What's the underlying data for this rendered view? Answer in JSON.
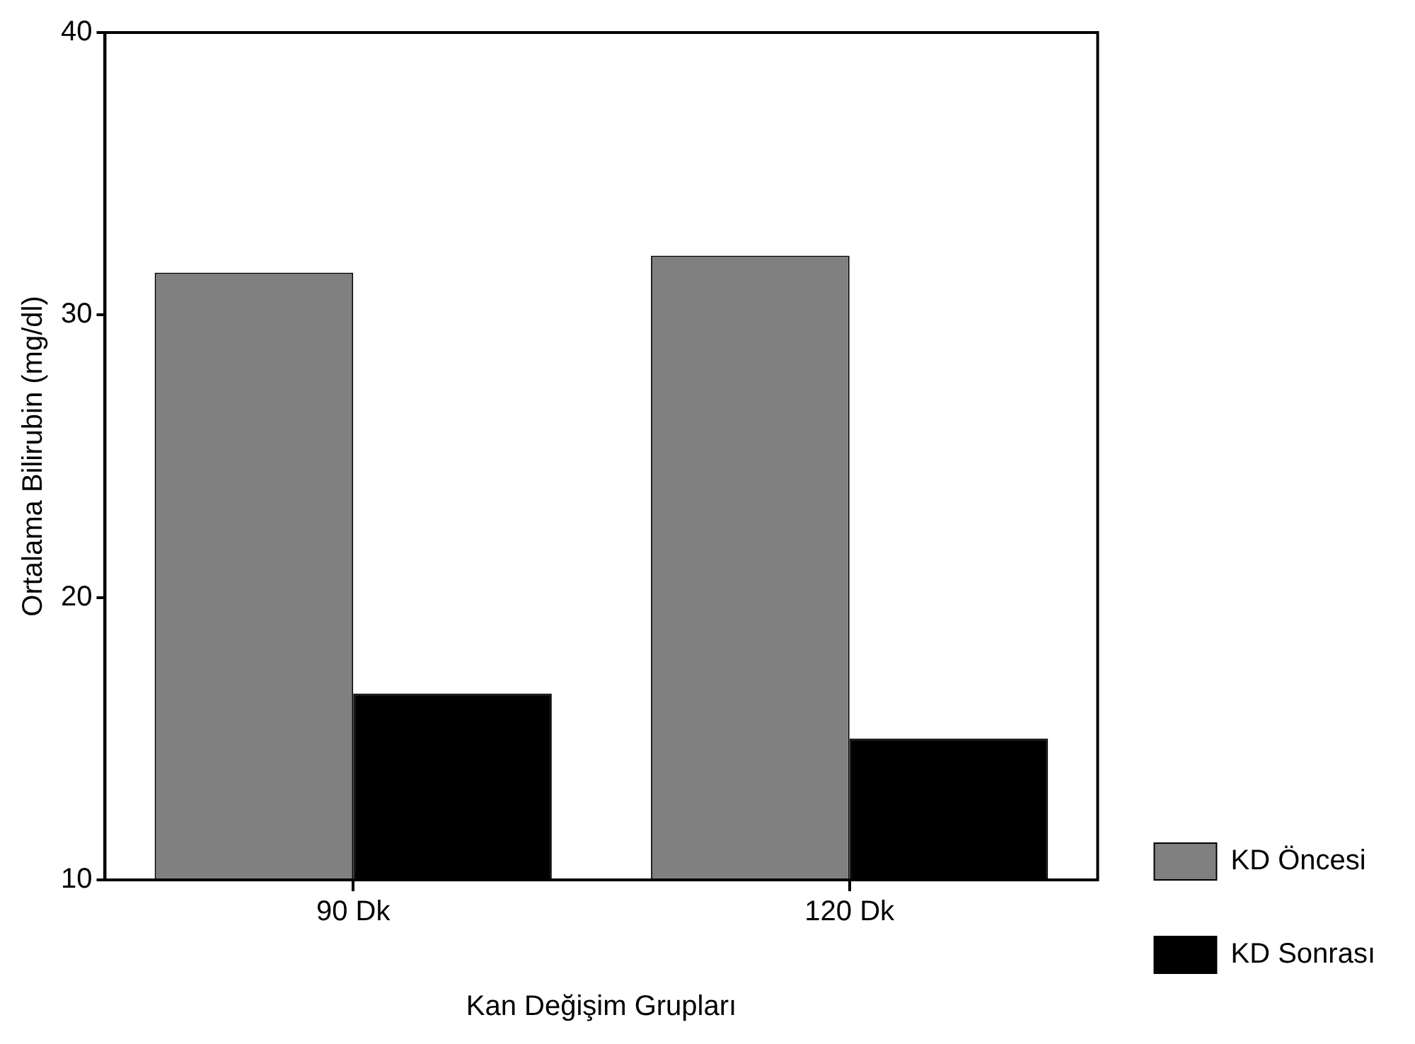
{
  "chart_data": {
    "type": "bar",
    "xlabel": "Kan Değişim Grupları",
    "ylabel": "Ortalama Bilirubin (mg/dl)",
    "categories": [
      "90 Dk",
      "120 Dk"
    ],
    "series": [
      {
        "name": "KD Öncesi",
        "color": "#808080",
        "values": [
          31.5,
          32.1
        ]
      },
      {
        "name": "KD Sonrası",
        "color": "#000000",
        "values": [
          16.6,
          15.0
        ]
      }
    ],
    "ylim": [
      10,
      40
    ],
    "yticks": [
      10,
      20,
      30,
      40
    ],
    "grid": false,
    "legend": "bottom right"
  }
}
